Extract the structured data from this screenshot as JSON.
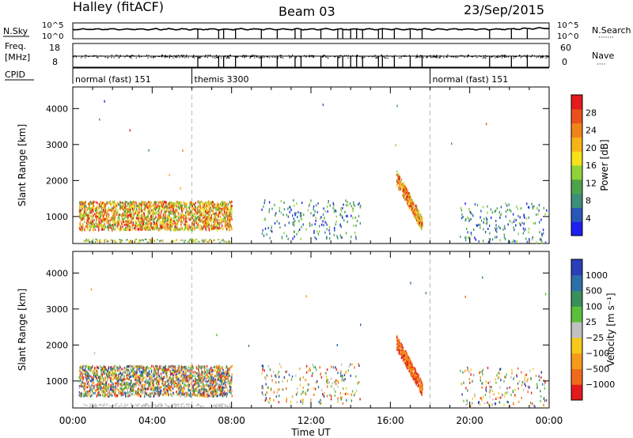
{
  "header": {
    "station": "Halley (fitACF)",
    "beam": "Beam 03",
    "date": "23/Sep/2015"
  },
  "nsky_panel": {
    "left_label": "N.Sky",
    "right_label": "N.Search",
    "right_dots": "·······",
    "left_ticks": [
      "10^5",
      "10^0"
    ],
    "right_ticks": [
      "10^5",
      "10^0"
    ]
  },
  "freq_panel": {
    "left_label_1": "Freq.",
    "left_label_2": "[MHz]",
    "right_label": "Nave",
    "right_dots": "····",
    "left_ticks": [
      "18",
      "8"
    ],
    "right_ticks": [
      "60",
      "0"
    ]
  },
  "cpid": {
    "label": "CPID",
    "segments": [
      {
        "name": "normal (fast) 151",
        "start_hour": 0,
        "end_hour": 6
      },
      {
        "name": "themis 3300",
        "start_hour": 6,
        "end_hour": 18
      },
      {
        "name": "normal (fast) 151",
        "start_hour": 18,
        "end_hour": 24
      }
    ]
  },
  "time_gaps_hours": [
    6.3,
    7.35,
    7.6,
    8.2,
    9.5,
    10.3,
    11.2,
    11.5,
    12.5,
    13.35,
    13.6,
    14.0,
    14.3,
    14.6,
    15.4,
    15.6,
    16.2,
    17.0,
    17.6,
    21.0,
    22.1,
    22.9
  ],
  "chart_data": [
    {
      "type": "heatmap",
      "name": "power",
      "ylabel": "Slant Range [km]",
      "xlabel": "",
      "colorbar_label": "Power [dB]",
      "xlim": [
        0,
        24
      ],
      "ylim": [
        250,
        4600
      ],
      "xticks": [
        "00:00",
        "04:00",
        "08:00",
        "12:00",
        "16:00",
        "20:00",
        "00:00"
      ],
      "yticks": [
        1000,
        2000,
        3000,
        4000
      ],
      "colorbar_ticks": [
        "4",
        "8",
        "12",
        "16",
        "20",
        "24",
        "28"
      ],
      "colorscale": [
        "#1f1ff0",
        "#2a57b8",
        "#3d8f79",
        "#4ea34a",
        "#8fd23a",
        "#f5e21b",
        "#f7b318",
        "#f08419",
        "#e9501b",
        "#e41a1c"
      ],
      "vlines_hours": [
        6,
        18
      ],
      "approx_scatter_regions": [
        {
          "x_start": 0.3,
          "x_end": 8.0,
          "y_min": 650,
          "y_max": 1450,
          "level": "mixed 8-28 dB"
        },
        {
          "x_start": 9.5,
          "x_end": 14.5,
          "y_min": 400,
          "y_max": 1500,
          "level": "sparse 4-16 dB"
        },
        {
          "x_start": 16.3,
          "x_end": 17.6,
          "y_min": 700,
          "y_max": 2300,
          "level": "12-28 dB"
        },
        {
          "x_start": 19.5,
          "x_end": 23.9,
          "y_min": 300,
          "y_max": 1400,
          "level": "sparse 4-8 dB"
        }
      ]
    },
    {
      "type": "heatmap",
      "name": "velocity",
      "ylabel": "Slant Range [km]",
      "xlabel": "Time UT",
      "colorbar_label": "Velocity [m s⁻¹]",
      "xlim": [
        0,
        24
      ],
      "ylim": [
        250,
        4600
      ],
      "xticks": [
        "00:00",
        "04:00",
        "08:00",
        "12:00",
        "16:00",
        "20:00",
        "00:00"
      ],
      "yticks": [
        1000,
        2000,
        3000,
        4000
      ],
      "colorbar_ticks": [
        "1000",
        "500",
        "100",
        "25",
        "−25",
        "−100",
        "−500",
        "−1000"
      ],
      "colorscale": [
        "#2b3fb8",
        "#2d6fa8",
        "#3a8f5a",
        "#5cbf3b",
        "#c0c0c0",
        "#f7c91a",
        "#f59a1a",
        "#f06a1c",
        "#e41a1c"
      ],
      "vlines_hours": [
        6,
        18
      ],
      "approx_scatter_regions": [
        {
          "x_start": 0.3,
          "x_end": 8.0,
          "y_min": 600,
          "y_max": 1450,
          "level": "mixed -500 to 500"
        },
        {
          "x_start": 9.5,
          "x_end": 14.5,
          "y_min": 400,
          "y_max": 1500,
          "level": "sparse"
        },
        {
          "x_start": 16.3,
          "x_end": 17.6,
          "y_min": 700,
          "y_max": 2300,
          "level": "-100 to -1000"
        },
        {
          "x_start": 19.5,
          "x_end": 23.9,
          "y_min": 300,
          "y_max": 1400,
          "level": "sparse"
        }
      ]
    }
  ]
}
